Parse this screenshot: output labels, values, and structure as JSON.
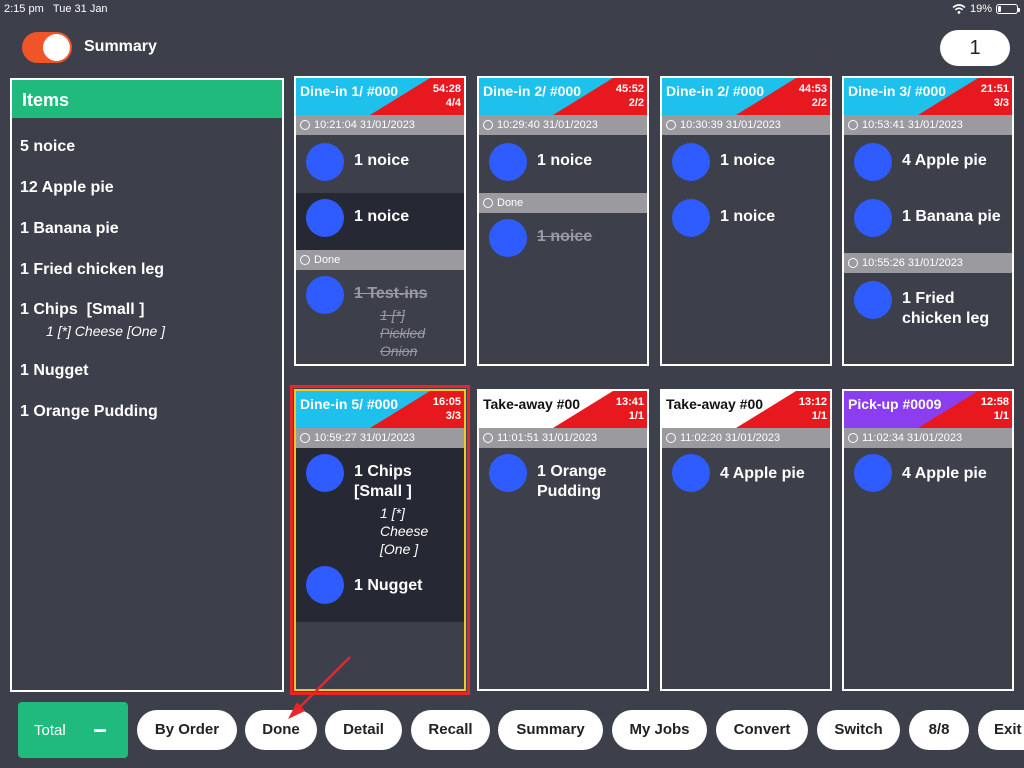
{
  "status_bar": {
    "time": "2:15 pm",
    "date": "Tue 31 Jan",
    "battery": "19%",
    "battery_level": 0.19
  },
  "top": {
    "toggle_label": "Summary",
    "toggle_on": true,
    "page_number": "1"
  },
  "items_panel": {
    "title": "Items",
    "items": [
      {
        "label": "5 noice"
      },
      {
        "label": "12 Apple pie"
      },
      {
        "label": "1 Banana pie"
      },
      {
        "label": "1 Fried chicken leg"
      },
      {
        "label": "1 Chips  [Small ]",
        "sub": "1 [*] Cheese [One ]"
      },
      {
        "label": "1 Nugget"
      },
      {
        "label": "1 Orange Pudding"
      }
    ]
  },
  "orders": [
    {
      "title": "Dine-in 1/ #000",
      "timer": "54:28",
      "count": "4/4",
      "head_color": "#1ec0ec",
      "timestamp": "10:21:04 31/01/2023",
      "items": [
        {
          "text": "1 noice"
        },
        {
          "text": "1 noice"
        }
      ],
      "done_label": "Done",
      "done_item": "1 Test-ins",
      "done_sub": [
        "1 [*]",
        "Pickled",
        "Onion"
      ]
    },
    {
      "title": "Dine-in 2/ #000",
      "timer": "45:52",
      "count": "2/2",
      "head_color": "#1ec0ec",
      "timestamp": "10:29:40 31/01/2023",
      "items": [
        {
          "text": "1 noice"
        }
      ],
      "done_label": "Done",
      "done_item": "1 noice"
    },
    {
      "title": "Dine-in 2/ #000",
      "timer": "44:53",
      "count": "2/2",
      "head_color": "#1ec0ec",
      "timestamp": "10:30:39 31/01/2023",
      "items": [
        {
          "text": "1 noice"
        },
        {
          "text": "1 noice"
        }
      ]
    },
    {
      "title": "Dine-in 3/ #000",
      "timer": "21:51",
      "count": "3/3",
      "head_color": "#1ec0ec",
      "timestamp": "10:53:41 31/01/2023",
      "items": [
        {
          "text": "4 Apple pie"
        },
        {
          "text": "1 Banana pie"
        }
      ],
      "timestamp2": "10:55:26 31/01/2023",
      "item_after": "1 Fried chicken leg"
    },
    {
      "title": "Dine-in 5/ #000",
      "timer": "16:05",
      "count": "3/3",
      "head_color": "#1ec0ec",
      "timestamp": "10:59:27 31/01/2023",
      "items": [
        {
          "text": "1 Chips [Small ]",
          "sub": [
            "1 [*]",
            "Cheese",
            "[One ]"
          ]
        },
        {
          "text": "1 Nugget"
        }
      ]
    },
    {
      "title": "Take-away  #00",
      "timer": "13:41",
      "count": "1/1",
      "head_color": "#ffffff",
      "timestamp": "11:01:51 31/01/2023",
      "items": [
        {
          "text": "1 Orange Pudding"
        }
      ]
    },
    {
      "title": "Take-away  #00",
      "timer": "13:12",
      "count": "1/1",
      "head_color": "#ffffff",
      "timestamp": "11:02:20 31/01/2023",
      "items": [
        {
          "text": "4 Apple pie"
        }
      ]
    },
    {
      "title": "Pick-up  #0009",
      "timer": "12:58",
      "count": "1/1",
      "head_color": "#8b3df0",
      "timestamp": "11:02:34 31/01/2023",
      "items": [
        {
          "text": "4 Apple pie"
        }
      ]
    }
  ],
  "toolbar": {
    "total_label": "Total",
    "buttons": [
      "By Order",
      "Done",
      "Detail",
      "Recall",
      "Summary",
      "My Jobs",
      "Convert",
      "Switch",
      "8/8",
      "Exit"
    ]
  }
}
